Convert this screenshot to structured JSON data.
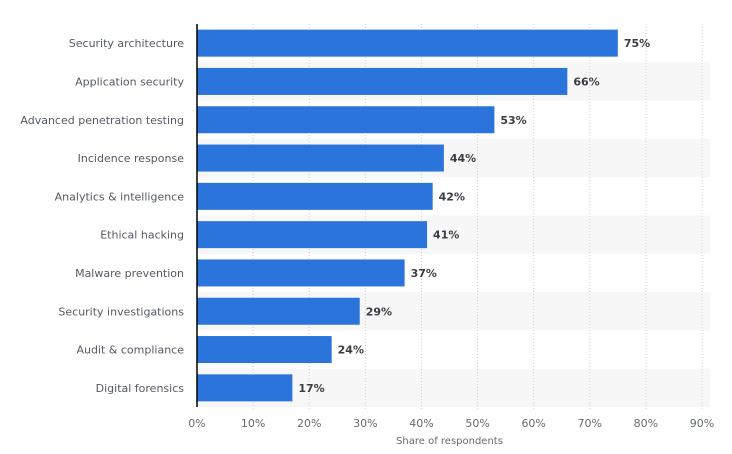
{
  "chart_data": {
    "type": "bar",
    "orientation": "horizontal",
    "title": "",
    "xlabel": "Share of respondents",
    "ylabel": "",
    "xlim": [
      0,
      90
    ],
    "x_ticks": [
      "0%",
      "10%",
      "20%",
      "30%",
      "40%",
      "50%",
      "60%",
      "70%",
      "80%",
      "90%"
    ],
    "x_tick_values": [
      0,
      10,
      20,
      30,
      40,
      50,
      60,
      70,
      80,
      90
    ],
    "grid": true,
    "legend": "none",
    "categories": [
      "Security architecture",
      "Application security",
      "Advanced penetration testing",
      "Incidence response",
      "Analytics & intelligence",
      "Ethical hacking",
      "Malware prevention",
      "Security investigations",
      "Audit & compliance",
      "Digital forensics"
    ],
    "values": [
      75,
      66,
      53,
      44,
      42,
      41,
      37,
      29,
      24,
      17
    ],
    "value_labels": [
      "75%",
      "66%",
      "53%",
      "44%",
      "42%",
      "41%",
      "37%",
      "29%",
      "24%",
      "17%"
    ],
    "colors": {
      "bar": "#2a74dc",
      "row_stripe": "#f7f7f7",
      "grid": "#cfcfcf",
      "axis": "#000000"
    }
  }
}
